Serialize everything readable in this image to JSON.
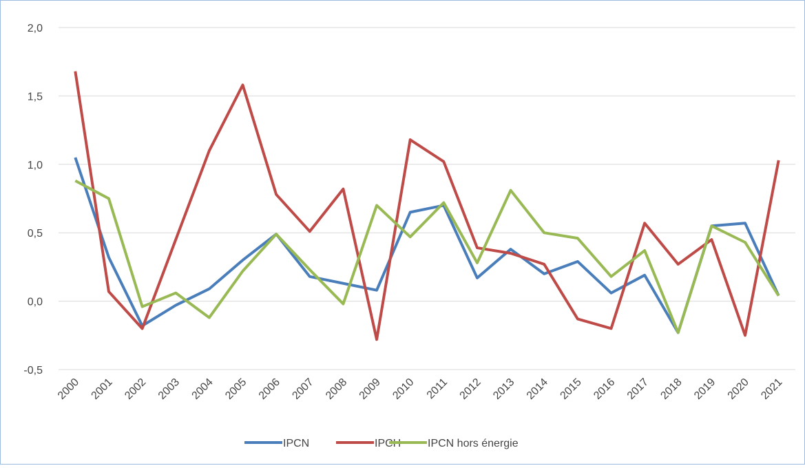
{
  "chart_data": {
    "type": "line",
    "categories": [
      "2000",
      "2001",
      "2002",
      "2003",
      "2004",
      "2005",
      "2006",
      "2007",
      "2008",
      "2009",
      "2010",
      "2011",
      "2012",
      "2013",
      "2014",
      "2015",
      "2016",
      "2017",
      "2018",
      "2019",
      "2020",
      "2021"
    ],
    "series": [
      {
        "name": "IPCN",
        "color": "#4a7ebb",
        "values": [
          1.05,
          0.32,
          -0.18,
          -0.03,
          0.09,
          0.3,
          0.49,
          0.18,
          0.13,
          0.08,
          0.65,
          0.7,
          0.17,
          0.38,
          0.2,
          0.29,
          0.06,
          0.19,
          -0.23,
          0.55,
          0.57,
          0.04
        ]
      },
      {
        "name": "IPCH",
        "color": "#be4b48",
        "values": [
          1.68,
          0.07,
          -0.2,
          0.45,
          1.1,
          1.58,
          0.78,
          0.51,
          0.82,
          -0.28,
          1.18,
          1.02,
          0.39,
          0.35,
          0.27,
          -0.13,
          -0.2,
          0.57,
          0.27,
          0.45,
          -0.25,
          1.03
        ]
      },
      {
        "name": "IPCN hors énergie",
        "color": "#98b954",
        "values": [
          0.88,
          0.75,
          -0.04,
          0.06,
          -0.12,
          0.22,
          0.49,
          0.23,
          -0.02,
          0.7,
          0.47,
          0.72,
          0.28,
          0.81,
          0.5,
          0.46,
          0.18,
          0.37,
          -0.23,
          0.55,
          0.43,
          0.04
        ]
      }
    ],
    "ylim": [
      -0.5,
      2.0
    ],
    "yticks": [
      {
        "value": -0.5,
        "label": "-0,5"
      },
      {
        "value": 0,
        "label": "0,0"
      },
      {
        "value": 0.5,
        "label": "0,5"
      },
      {
        "value": 1,
        "label": "1,0"
      },
      {
        "value": 1.5,
        "label": "1,5"
      },
      {
        "value": 2,
        "label": "2,0"
      }
    ],
    "grid": true,
    "legend": "bottom"
  }
}
